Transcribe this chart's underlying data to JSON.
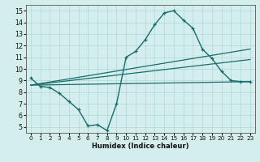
{
  "xlabel": "Humidex (Indice chaleur)",
  "bg_color": "#d4eeee",
  "line_color": "#1a6b6b",
  "grid_color": "#b0d8d8",
  "xlim": [
    -0.5,
    23.5
  ],
  "ylim": [
    4.5,
    15.5
  ],
  "xticks": [
    0,
    1,
    2,
    3,
    4,
    5,
    6,
    7,
    8,
    9,
    10,
    11,
    12,
    13,
    14,
    15,
    16,
    17,
    18,
    19,
    20,
    21,
    22,
    23
  ],
  "yticks": [
    5,
    6,
    7,
    8,
    9,
    10,
    11,
    12,
    13,
    14,
    15
  ],
  "line_main_x": [
    0,
    1,
    2,
    3,
    4,
    5,
    6,
    7,
    8,
    9,
    10,
    11,
    12,
    13,
    14,
    15,
    16,
    17,
    18,
    19,
    20,
    21,
    22,
    23
  ],
  "line_main_y": [
    9.2,
    8.5,
    8.4,
    7.9,
    7.2,
    6.5,
    5.1,
    5.2,
    4.7,
    7.0,
    11.0,
    11.5,
    12.5,
    13.8,
    14.8,
    15.0,
    14.2,
    13.5,
    11.7,
    10.9,
    9.8,
    9.0,
    8.9,
    8.9
  ],
  "line2_x": [
    0,
    23
  ],
  "line2_y": [
    8.6,
    11.7
  ],
  "line3_x": [
    0,
    23
  ],
  "line3_y": [
    8.6,
    10.8
  ],
  "line4_x": [
    0,
    23
  ],
  "line4_y": [
    8.6,
    8.9
  ]
}
